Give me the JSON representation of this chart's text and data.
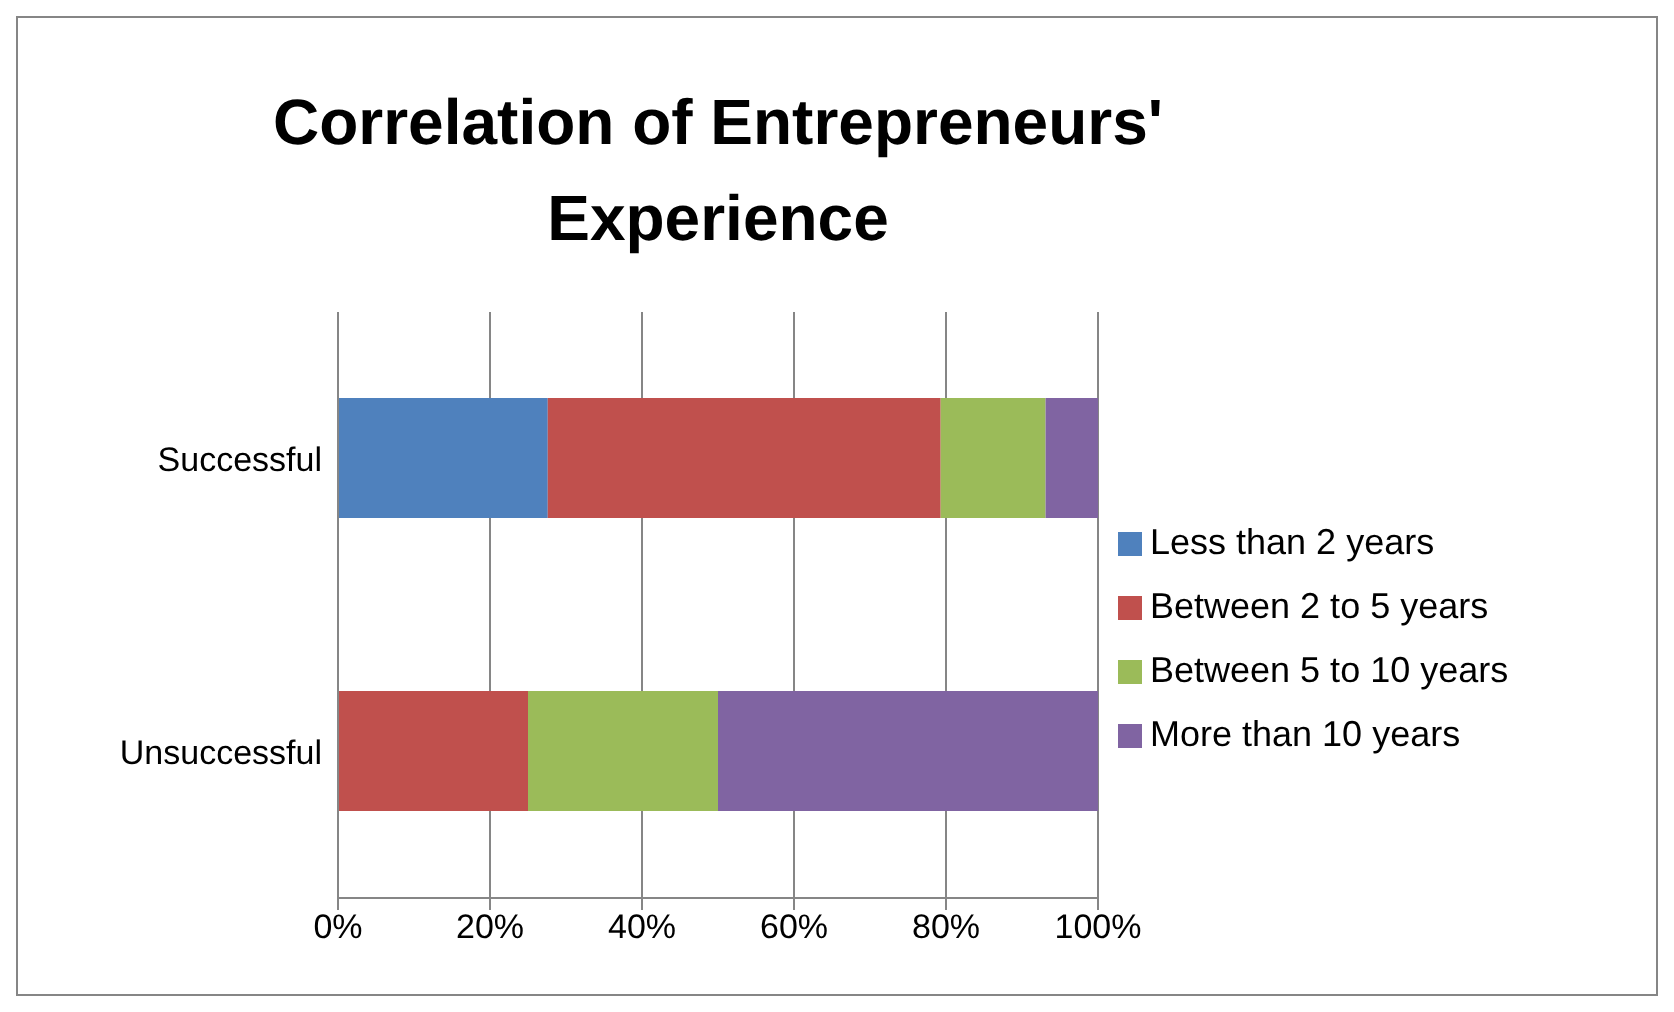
{
  "chart_data": {
    "type": "bar",
    "title": "Correlation of Entrepreneurs' Experience",
    "orientation": "horizontal",
    "stacked": true,
    "categories": [
      "Successful",
      "Unsuccessful"
    ],
    "series": [
      {
        "name": "Less than 2 years",
        "color": "#4f81bd",
        "values": [
          27.6,
          0
        ]
      },
      {
        "name": "Between 2 to 5 years",
        "color": "#c0504d",
        "values": [
          51.7,
          25
        ]
      },
      {
        "name": "Between 5 to 10 years",
        "color": "#9bbb59",
        "values": [
          13.8,
          25
        ]
      },
      {
        "name": "More than 10 years",
        "color": "#8064a2",
        "values": [
          6.9,
          50
        ]
      }
    ],
    "xlim": [
      0,
      100
    ],
    "xticks": [
      {
        "value": 0,
        "label": "0%"
      },
      {
        "value": 20,
        "label": "20%"
      },
      {
        "value": 40,
        "label": "40%"
      },
      {
        "value": 60,
        "label": "60%"
      },
      {
        "value": 80,
        "label": "80%"
      },
      {
        "value": 100,
        "label": "100%"
      }
    ],
    "grid": "x",
    "legend": "right"
  }
}
